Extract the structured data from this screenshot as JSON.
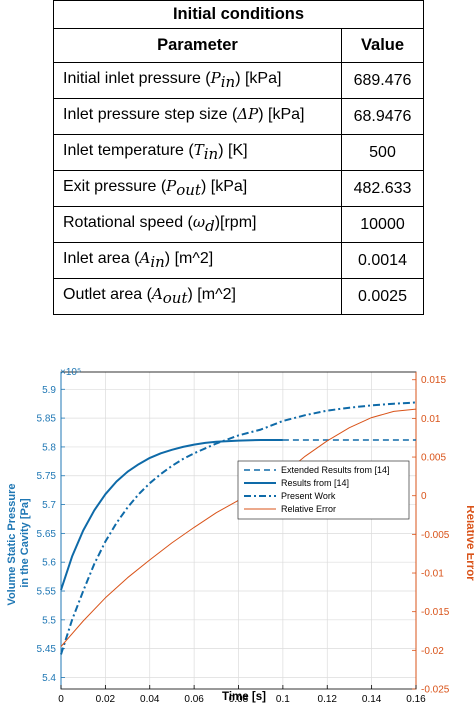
{
  "table": {
    "caption": "Initial conditions",
    "header": {
      "parameter": "Parameter",
      "value": "Value"
    },
    "rows": [
      {
        "pre": "Initial inlet pressure  (",
        "sym": "P",
        "sub": "in",
        "post": ")  [kPa]",
        "value": "689.476"
      },
      {
        "pre": "Inlet pressure step size  (",
        "sym": "ΔP",
        "sub": "",
        "post": ")  [kPa]",
        "value": "68.9476"
      },
      {
        "pre": "Inlet temperature  (",
        "sym": "T",
        "sub": "in",
        "post": ")  [K]",
        "value": "500"
      },
      {
        "pre": "Exit pressure (",
        "sym": "P",
        "sub": "out",
        "post": ") [kPa]",
        "value": "482.633"
      },
      {
        "pre": "Rotational speed  (",
        "sym": "ω",
        "sub": "d",
        "post": ")[rpm]",
        "value": "10000"
      },
      {
        "pre": "Inlet area  (",
        "sym": "A",
        "sub": "in",
        "post": ")  [m^2]",
        "value": "0.0014"
      },
      {
        "pre": "Outlet area  (",
        "sym": "A",
        "sub": "out",
        "post": ")  [m^2]",
        "value": "0.0025"
      }
    ]
  },
  "colors": {
    "left_axis": "#1f77b4",
    "series_blue": "#0e6aa8",
    "right_axis": "#d95319",
    "grid": "#dcdcdc"
  },
  "chart_data": {
    "type": "line",
    "xlabel": "Time [s]",
    "ylabel_left": "Volume Static Pressure\nin the Cavity [Pa]",
    "ylabel_right": "Relative Error",
    "left_exponent": "×10⁵",
    "xlim": [
      0,
      0.16
    ],
    "ylim_left": [
      5.38,
      5.93
    ],
    "ylim_right": [
      -0.025,
      0.016
    ],
    "x_ticks": [
      "0",
      "0.02",
      "0.04",
      "0.06",
      "0.08",
      "0.1",
      "0.12",
      "0.14",
      "0.16"
    ],
    "y_ticks_left": [
      "5.4",
      "5.45",
      "5.5",
      "5.55",
      "5.6",
      "5.65",
      "5.7",
      "5.75",
      "5.8",
      "5.85",
      "5.9"
    ],
    "y_ticks_right": [
      "-0.025",
      "-0.02",
      "-0.015",
      "-0.01",
      "-0.005",
      "0",
      "0.005",
      "0.01",
      "0.015"
    ],
    "grid": true,
    "legend_position": "center-right",
    "series": [
      {
        "name": "Extended Results from [14]",
        "axis": "left",
        "style": "dashed",
        "x": [
          0.1,
          0.11,
          0.12,
          0.13,
          0.14,
          0.15,
          0.16
        ],
        "y": [
          5.812,
          5.812,
          5.812,
          5.812,
          5.812,
          5.812,
          5.812
        ]
      },
      {
        "name": "Results from [14]",
        "axis": "left",
        "style": "solid",
        "x": [
          0,
          0.005,
          0.01,
          0.015,
          0.02,
          0.025,
          0.03,
          0.035,
          0.04,
          0.045,
          0.05,
          0.055,
          0.06,
          0.065,
          0.07,
          0.08,
          0.09,
          0.1
        ],
        "y": [
          5.552,
          5.61,
          5.655,
          5.69,
          5.718,
          5.74,
          5.757,
          5.77,
          5.781,
          5.789,
          5.795,
          5.8,
          5.804,
          5.807,
          5.809,
          5.811,
          5.812,
          5.812
        ]
      },
      {
        "name": "Present Work",
        "axis": "left",
        "style": "dashdot",
        "x": [
          0,
          0.005,
          0.01,
          0.015,
          0.02,
          0.025,
          0.03,
          0.035,
          0.04,
          0.045,
          0.05,
          0.055,
          0.06,
          0.07,
          0.08,
          0.09,
          0.1,
          0.11,
          0.12,
          0.13,
          0.14,
          0.15,
          0.16
        ],
        "y": [
          5.44,
          5.5,
          5.55,
          5.597,
          5.636,
          5.668,
          5.695,
          5.718,
          5.737,
          5.753,
          5.767,
          5.779,
          5.789,
          5.806,
          5.82,
          5.83,
          5.845,
          5.855,
          5.863,
          5.868,
          5.872,
          5.875,
          5.877
        ]
      },
      {
        "name": "Relative Error",
        "axis": "right",
        "style": "solid",
        "x": [
          0,
          0.01,
          0.02,
          0.03,
          0.04,
          0.05,
          0.06,
          0.07,
          0.08,
          0.09,
          0.1,
          0.11,
          0.12,
          0.13,
          0.14,
          0.15,
          0.16
        ],
        "y": [
          -0.0195,
          -0.0162,
          -0.0132,
          -0.0106,
          -0.0083,
          -0.0061,
          -0.0041,
          -0.0022,
          -0.0006,
          0.0009,
          0.0027,
          0.0051,
          0.0071,
          0.0088,
          0.0101,
          0.0109,
          0.0112
        ]
      }
    ]
  }
}
